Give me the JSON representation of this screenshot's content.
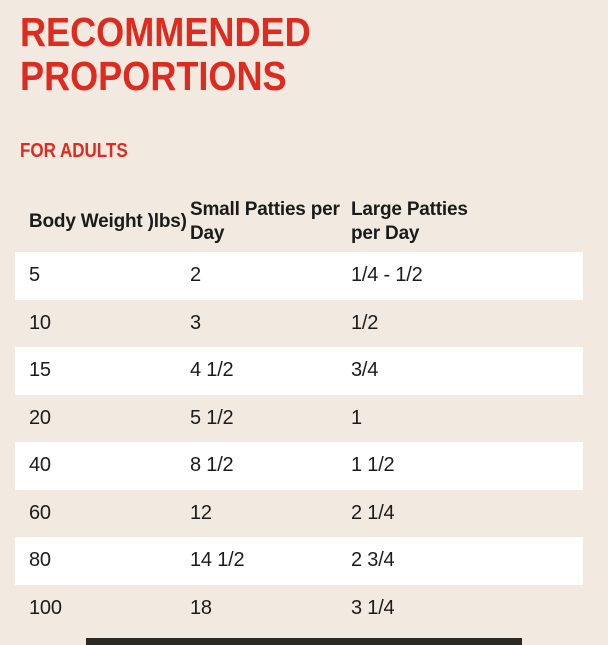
{
  "page": {
    "background_color": "#f2eae1",
    "accent_color": "#dd2b20",
    "text_color": "#1b1b1b",
    "row_highlight_color": "#ffffff",
    "bottom_bar_color": "#2c2824"
  },
  "heading": {
    "line1": "RECOMMENDED",
    "line2": "PROPORTIONS"
  },
  "subheading": "FOR ADULTS",
  "table": {
    "columns": [
      "Body Weight )lbs)",
      "Small Patties per Day",
      "Large Patties per Day"
    ],
    "rows": [
      [
        "5",
        "2",
        "1/4 - 1/2"
      ],
      [
        "10",
        "3",
        "1/2"
      ],
      [
        "15",
        "4 1/2",
        "3/4"
      ],
      [
        "20",
        "5 1/2",
        "1"
      ],
      [
        "40",
        "8 1/2",
        "1 1/2"
      ],
      [
        "60",
        "12",
        "2 1/4"
      ],
      [
        "80",
        "14 1/2",
        "2 3/4"
      ],
      [
        "100",
        "18",
        "3 1/4"
      ]
    ]
  }
}
